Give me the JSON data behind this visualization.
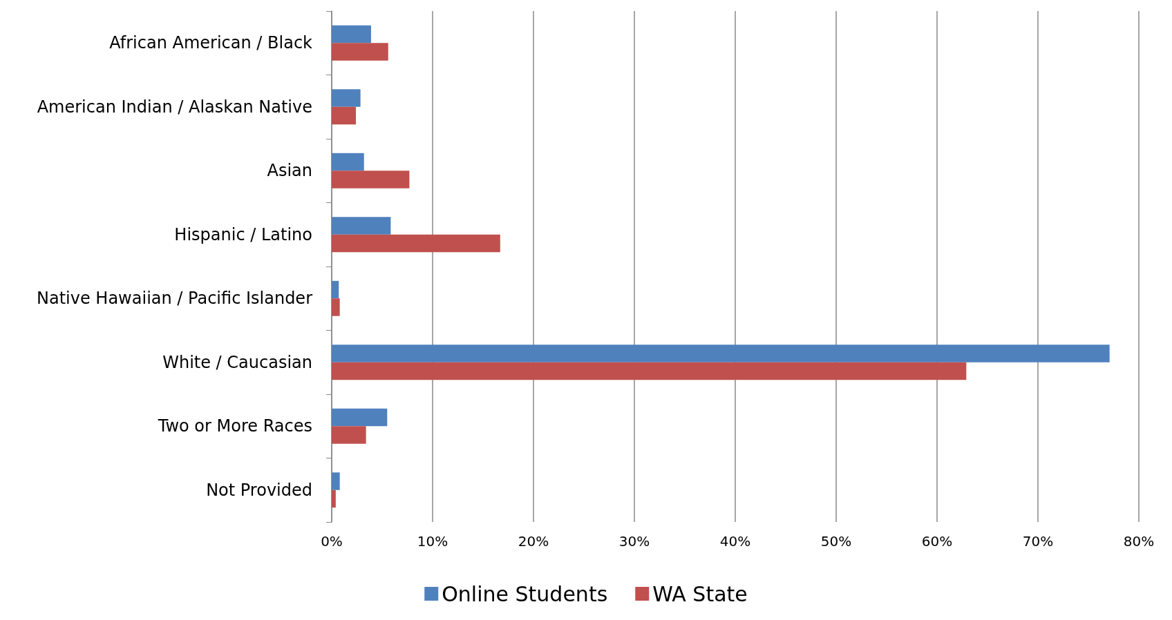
{
  "chart_data": {
    "type": "bar",
    "orientation": "horizontal",
    "categories": [
      "African American / Black",
      "American Indian / Alaskan Native",
      "Asian",
      "Hispanic / Latino",
      "Native Hawaiian / Pacific Islander",
      "White / Caucasian",
      "Two or More Races",
      "Not Provided"
    ],
    "series": [
      {
        "name": "Online Students",
        "color": "#4f81bd",
        "values": [
          3.9,
          2.85,
          3.2,
          5.85,
          0.7,
          77.1,
          5.5,
          0.8
        ]
      },
      {
        "name": "WA State",
        "color": "#c0504d",
        "values": [
          5.6,
          2.4,
          7.7,
          16.7,
          0.8,
          62.9,
          3.4,
          0.4
        ]
      }
    ],
    "xlim": [
      0,
      80
    ],
    "xticks": [
      {
        "value": 0,
        "label": "0%"
      },
      {
        "value": 10,
        "label": "10%"
      },
      {
        "value": 20,
        "label": "20%"
      },
      {
        "value": 30,
        "label": "30%"
      },
      {
        "value": 40,
        "label": "40%"
      },
      {
        "value": 50,
        "label": "50%"
      },
      {
        "value": 60,
        "label": "60%"
      },
      {
        "value": 70,
        "label": "70%"
      },
      {
        "value": 80,
        "label": "80%"
      }
    ],
    "grid": "x",
    "legend": "bottom"
  }
}
